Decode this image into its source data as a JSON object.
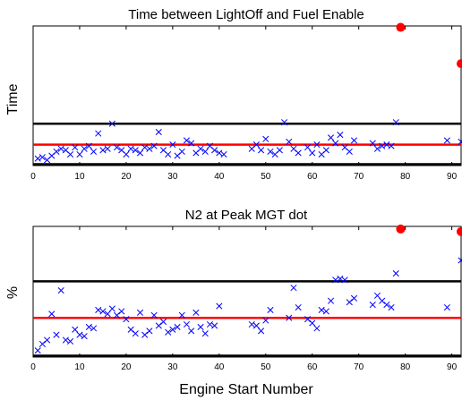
{
  "chart_data": [
    {
      "type": "scatter",
      "title": "Time between LightOff and Fuel Enable",
      "xlabel": "",
      "ylabel": "Time",
      "xlim": [
        0,
        92
      ],
      "ylim": [
        0,
        10
      ],
      "xticks": [
        0,
        10,
        20,
        30,
        40,
        50,
        60,
        70,
        80,
        90
      ],
      "grid": false,
      "colors": {
        "marker": "#0000ff",
        "mean_line": "#ff0000",
        "limit_line": "#000000",
        "outlier": "#ff0000"
      },
      "reference_lines": [
        {
          "role": "upper-limit",
          "color": "#000000",
          "y": 3.0
        },
        {
          "role": "mean",
          "color": "#ff0000",
          "y": 1.5
        },
        {
          "role": "lower-limit",
          "color": "#000000",
          "y": 0.1
        }
      ],
      "series": [
        {
          "marker": "x",
          "color": "#0000ff",
          "x": [
            1,
            2,
            3,
            4,
            5,
            6,
            7,
            8,
            9,
            10,
            11,
            12,
            13,
            14,
            15,
            16,
            17,
            18,
            19,
            20,
            21,
            22,
            23,
            24,
            25,
            26,
            27,
            28,
            29,
            30,
            31,
            32,
            33,
            34,
            35,
            36,
            37,
            38,
            39,
            40,
            41,
            47,
            48,
            49,
            50,
            51,
            52,
            53,
            54,
            55,
            56,
            57,
            59,
            60,
            61,
            62,
            63,
            64,
            65,
            66,
            67,
            68,
            69,
            73,
            74,
            75,
            76,
            77,
            78,
            89,
            92
          ],
          "y": [
            0.5,
            0.6,
            0.4,
            0.7,
            1.0,
            1.2,
            1.1,
            0.8,
            1.3,
            0.8,
            1.2,
            1.4,
            1.0,
            2.3,
            1.1,
            1.2,
            3.0,
            1.3,
            1.1,
            0.8,
            1.2,
            1.1,
            0.9,
            1.3,
            1.2,
            1.4,
            2.4,
            1.1,
            0.8,
            1.5,
            0.7,
            1.0,
            1.8,
            1.6,
            0.9,
            1.2,
            1.0,
            1.4,
            1.1,
            0.9,
            0.8,
            1.2,
            1.5,
            1.1,
            1.9,
            1.0,
            0.8,
            1.1,
            3.1,
            1.7,
            1.2,
            0.9,
            1.3,
            0.9,
            1.5,
            0.8,
            1.1,
            2.0,
            1.6,
            2.2,
            1.3,
            1.0,
            1.8,
            1.6,
            1.2,
            1.4,
            1.5,
            1.4,
            3.1,
            1.8,
            1.7
          ]
        },
        {
          "marker": "dot",
          "color": "#ff0000",
          "x": [
            79,
            92
          ],
          "y": [
            9.9,
            7.3
          ]
        }
      ]
    },
    {
      "type": "scatter",
      "title": "N2 at Peak MGT dot",
      "xlabel": "Engine Start Number",
      "ylabel": "%",
      "xlim": [
        0,
        92
      ],
      "ylim": [
        0,
        10
      ],
      "xticks": [
        0,
        10,
        20,
        30,
        40,
        50,
        60,
        70,
        80,
        90
      ],
      "grid": false,
      "colors": {
        "marker": "#0000ff",
        "mean_line": "#ff0000",
        "limit_line": "#000000",
        "outlier": "#ff0000"
      },
      "reference_lines": [
        {
          "role": "upper-limit",
          "color": "#000000",
          "y": 5.8
        },
        {
          "role": "mean",
          "color": "#ff0000",
          "y": 3.0
        },
        {
          "role": "lower-limit",
          "color": "#000000",
          "y": 0.1
        }
      ],
      "series": [
        {
          "marker": "x",
          "color": "#0000ff",
          "x": [
            1,
            2,
            3,
            4,
            5,
            6,
            7,
            8,
            9,
            10,
            11,
            12,
            13,
            14,
            15,
            16,
            17,
            18,
            19,
            20,
            21,
            22,
            23,
            24,
            25,
            26,
            27,
            28,
            29,
            30,
            31,
            32,
            33,
            34,
            35,
            36,
            37,
            38,
            39,
            40,
            47,
            48,
            49,
            50,
            51,
            55,
            56,
            57,
            59,
            60,
            61,
            62,
            63,
            64,
            65,
            66,
            67,
            68,
            69,
            73,
            74,
            75,
            76,
            77,
            78,
            89,
            92
          ],
          "y": [
            0.5,
            1.0,
            1.3,
            3.3,
            1.7,
            5.1,
            1.3,
            1.2,
            2.1,
            1.7,
            1.6,
            2.3,
            2.2,
            3.6,
            3.5,
            3.3,
            3.7,
            3.2,
            3.5,
            2.9,
            2.1,
            1.8,
            3.4,
            1.7,
            2.0,
            3.2,
            2.4,
            2.7,
            1.9,
            2.1,
            2.3,
            3.2,
            2.5,
            2.0,
            3.4,
            2.3,
            1.8,
            2.5,
            2.4,
            3.9,
            2.5,
            2.4,
            2.0,
            2.8,
            3.6,
            3.0,
            5.3,
            3.8,
            2.9,
            2.6,
            2.2,
            3.6,
            3.5,
            4.3,
            5.9,
            6.0,
            5.9,
            4.2,
            4.5,
            4.0,
            4.7,
            4.3,
            4.0,
            3.8,
            6.4,
            3.8,
            7.4
          ]
        },
        {
          "marker": "dot",
          "color": "#ff0000",
          "x": [
            79,
            92
          ],
          "y": [
            9.8,
            9.6
          ]
        }
      ]
    }
  ]
}
